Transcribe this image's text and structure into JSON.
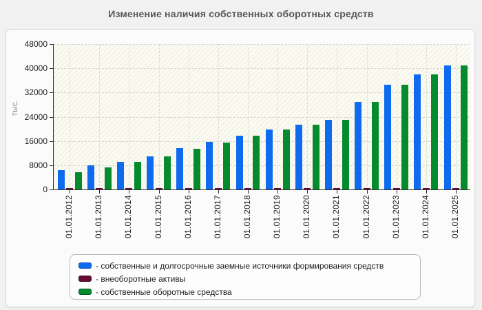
{
  "title": "Изменение наличия собственных оборотных средств",
  "chart_data": {
    "type": "bar",
    "title": "Изменение наличия собственных оборотных средств",
    "xlabel": "",
    "ylabel": "тыс.",
    "ylim": [
      0,
      48000
    ],
    "ytick_step": 8000,
    "yticks": [
      0,
      8000,
      16000,
      24000,
      32000,
      40000,
      48000
    ],
    "grid": true,
    "legend_position": "bottom",
    "categories": [
      "01.01.2012",
      "01.01.2013",
      "01.01.2014",
      "01.01.2015",
      "01.01.2016",
      "01.01.2017",
      "01.01.2018",
      "01.01.2019",
      "01.01.2020",
      "01.01.2021",
      "01.01.2022",
      "01.01.2023",
      "01.01.2024",
      "01.01.2025"
    ],
    "series": [
      {
        "name": "собственные и долгосрочные заемные источники формирования средств",
        "color": "#0e6bf0",
        "border_color": "#0a4ab8",
        "values": [
          6300,
          7900,
          9200,
          11000,
          13600,
          15600,
          17800,
          19800,
          21400,
          23000,
          28900,
          34600,
          37900,
          41000
        ]
      },
      {
        "name": "внеоборотные активы",
        "color": "#670b36",
        "border_color": "#3e0620",
        "values": [
          400,
          400,
          400,
          400,
          400,
          400,
          400,
          400,
          400,
          400,
          400,
          400,
          400,
          400
        ]
      },
      {
        "name": "собственные оборотные средства",
        "color": "#058a2e",
        "border_color": "#03571c",
        "values": [
          5800,
          7400,
          9100,
          10900,
          13500,
          15400,
          17700,
          19700,
          21400,
          22900,
          28800,
          34600,
          37900,
          41000
        ]
      }
    ]
  },
  "legend": {
    "items": [
      {
        "label": "- собственные и долгосрочные заемные источники формирования средств"
      },
      {
        "label": "- внеоборотные активы"
      },
      {
        "label": "- собственные оборотные средства"
      }
    ]
  },
  "colors": {
    "page_bg": "#f1f1f1",
    "panel_bg": "#fbfbfb",
    "panel_border": "#d9d9d9",
    "plot_bg": "#fbfbf2",
    "hatch_line": "#ecece1",
    "grid_line": "#d4d4d4",
    "vgrid_line": "#dddcd2",
    "axis_line": "#2f2f2f",
    "tick_text": "#1f1f1f",
    "title_text": "#53575b",
    "y_axis_title_text": "#8b8b8b",
    "legend_bg": "#fdfdfd",
    "legend_border": "#b9b9b9"
  }
}
